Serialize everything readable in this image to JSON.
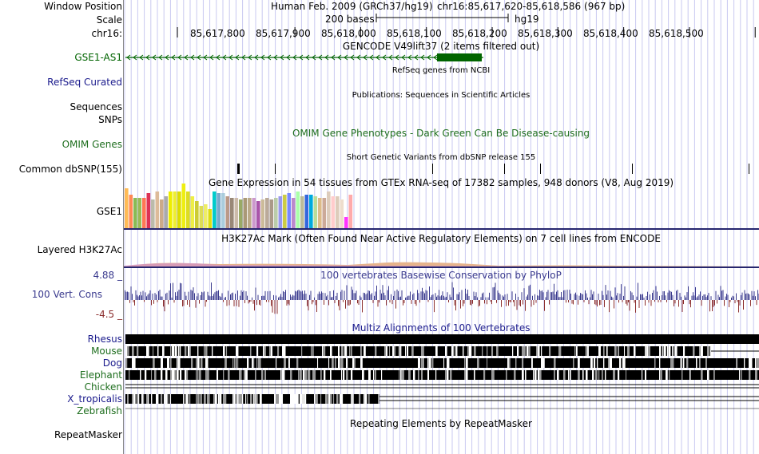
{
  "header": {
    "window_position_label": "Window Position",
    "assembly": "Human Feb. 2009 (GRCh37/hg19)",
    "position": "chr16:85,617,620-85,618,586 (967 bp)",
    "scale_label": "Scale",
    "scale_text": "200 bases",
    "db": "hg19",
    "chrom_label": "chr16:"
  },
  "ruler": {
    "ticks": [
      "85,617,800",
      "85,617,900",
      "85,618,000",
      "85,618,100",
      "85,618,200",
      "85,618,300",
      "85,618,400",
      "85,618,500"
    ],
    "start": 85617620,
    "end": 85618586
  },
  "tracks": {
    "gencode_title": "GENCODE V49lift37 (2 items filtered out)",
    "gene_label": "GSE1-AS1",
    "refseq_label": "RefSeq Curated",
    "refseq_title": "RefSeq genes from NCBI",
    "publications_title": "Publications: Sequences in Scientific Articles",
    "sequences_label": "Sequences",
    "snps_label": "SNPs",
    "omim_title": "OMIM Gene Phenotypes - Dark Green Can Be Disease-causing",
    "omim_label": "OMIM Genes",
    "dbsnp_title": "Short Genetic Variants from dbSNP release 155",
    "dbsnp_label": "Common dbSNP(155)",
    "gtex_title": "Gene Expression in 54 tissues from GTEx RNA-seq of 17382 samples, 948 donors (V8, Aug 2019)",
    "gtex_label": "GSE1",
    "h3k27_title": "H3K27Ac Mark (Often Found Near Active Regulatory Elements) on 7 cell lines from ENCODE",
    "h3k27_label": "Layered H3K27Ac",
    "cons_max": "4.88 _",
    "cons_label": "100 Vert. Cons",
    "cons_min": "-4.5 _",
    "cons_title": "100 vertebrates Basewise Conservation by PhyloP",
    "multiz_title": "Multiz Alignments of 100 Vertebrates",
    "species": [
      "Rhesus",
      "Mouse",
      "Dog",
      "Elephant",
      "Chicken",
      "X_tropicalis",
      "Zebrafish"
    ],
    "repeat_title": "Repeating Elements by RepeatMasker",
    "repeat_label": "RepeatMasker"
  },
  "colors": {
    "gene_green": "#006400",
    "label_blue": "#1a1a8c",
    "omim_green": "#1e6e1e",
    "cons_blue": "#3a3a8e",
    "cons_red": "#8b2d2d"
  },
  "gtex_values": [
    50,
    40,
    36,
    36,
    36,
    36,
    36,
    44,
    34,
    40,
    38,
    38,
    36,
    56,
    46,
    42,
    36,
    30,
    34,
    26,
    22,
    26,
    20,
    22,
    20,
    18,
    44,
    40,
    40,
    38,
    36,
    36,
    36,
    36,
    36,
    36,
    36,
    34,
    34,
    36,
    32,
    38,
    36,
    36,
    36,
    34,
    34,
    46,
    44,
    40,
    40,
    40,
    40,
    40,
    36,
    38,
    40,
    40,
    38,
    40,
    36,
    40,
    44,
    18,
    12
  ]
}
